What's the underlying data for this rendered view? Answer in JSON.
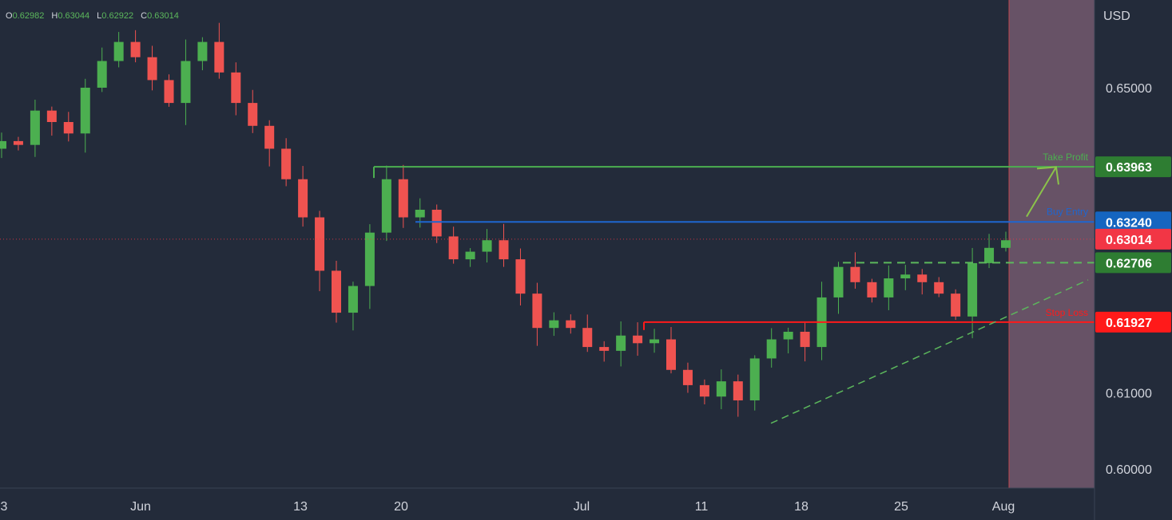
{
  "ohlc": {
    "o_label": "O",
    "o": "0.62982",
    "h_label": "H",
    "h": "0.63044",
    "l_label": "L",
    "l": "0.62922",
    "c_label": "C",
    "c": "0.63014"
  },
  "currency": "USD",
  "colors": {
    "background": "#232b3a",
    "up": "#26a69a",
    "up_candle": "#4caf50",
    "down": "#ef5350",
    "take_profit": "#4caf50",
    "buy_entry": "#1e66d0",
    "stop_loss": "#ff1a1a",
    "current": "#f23645",
    "shade": "#6b5468",
    "dashed": "#5cb85c"
  },
  "chart_data": {
    "type": "candlestick",
    "ylim": [
      0.5975,
      0.6615
    ],
    "y_ticks": [
      "0.65000",
      "0.61000",
      "0.60000"
    ],
    "x_ticks": [
      "3",
      "Jun",
      "13",
      "20",
      "Jul",
      "11",
      "18",
      "25",
      "Aug"
    ],
    "levels": [
      {
        "name": "Take Profit",
        "value": 0.63963,
        "label": "0.63963",
        "style": "solid"
      },
      {
        "name": "Buy Entry",
        "value": 0.6324,
        "label": "0.63240",
        "style": "solid"
      },
      {
        "name": "",
        "value": 0.63014,
        "label": "0.63014",
        "style": "dotted",
        "current": true
      },
      {
        "name": "",
        "value": 0.62706,
        "label": "0.62706",
        "style": "dashed"
      },
      {
        "name": "Stop Loss",
        "value": 0.61927,
        "label": "0.61927",
        "style": "solid"
      }
    ],
    "trendline": {
      "from": 0.606,
      "to": 0.6248
    },
    "anchors": [
      [
        "May 30",
        0.643
      ],
      [
        "May 31",
        0.6425
      ],
      [
        "Jun 1",
        0.647
      ],
      [
        "Jun 2",
        0.6455
      ],
      [
        "Jun 3",
        0.644
      ],
      [
        "Jun 6",
        0.65
      ],
      [
        "Jun 7",
        0.6535
      ],
      [
        "Jun 8",
        0.656
      ],
      [
        "Jun 9",
        0.654
      ],
      [
        "Jun 10",
        0.651
      ],
      [
        "Jun 13",
        0.648
      ],
      [
        "Jun 14",
        0.6535
      ],
      [
        "Jun 15",
        0.656
      ],
      [
        "Jun 16",
        0.652
      ],
      [
        "Jun 17",
        0.648
      ],
      [
        "Jun 20",
        0.645
      ],
      [
        "Jun 21",
        0.642
      ],
      [
        "Jun 22",
        0.638
      ],
      [
        "Jun 23",
        0.633
      ],
      [
        "Jun 24",
        0.626
      ],
      [
        "Jun 27",
        0.6205
      ],
      [
        "Jun 28",
        0.624
      ],
      [
        "Jun 29",
        0.631
      ],
      [
        "Jun 30",
        0.638
      ],
      [
        "Jul 1",
        0.633
      ],
      [
        "Jul 4",
        0.634
      ],
      [
        "Jul 5",
        0.6305
      ],
      [
        "Jul 6",
        0.6275
      ],
      [
        "Jul 7",
        0.6285
      ],
      [
        "Jul 8",
        0.63
      ],
      [
        "Jul 11",
        0.6275
      ],
      [
        "Jul 12",
        0.623
      ],
      [
        "Jul 13",
        0.6185
      ],
      [
        "Jul 14",
        0.6195
      ],
      [
        "Jul 15",
        0.6185
      ],
      [
        "Jul 18",
        0.616
      ],
      [
        "Jul 19",
        0.6155
      ],
      [
        "Jul 20",
        0.6175
      ],
      [
        "Jul 21",
        0.6165
      ],
      [
        "Jul 22",
        0.617
      ],
      [
        "Jul 25",
        0.613
      ],
      [
        "Jul 26",
        0.611
      ],
      [
        "Jul 27",
        0.6095
      ],
      [
        "Jul 28",
        0.6115
      ],
      [
        "Jul 29",
        0.609
      ],
      [
        "Aug 1",
        0.6145
      ],
      [
        "Aug 2",
        0.617
      ],
      [
        "Aug 3",
        0.618
      ],
      [
        "Aug 4",
        0.616
      ],
      [
        "Aug 5",
        0.6225
      ],
      [
        "Aug 8",
        0.6265
      ],
      [
        "Aug 9",
        0.6245
      ],
      [
        "Aug 10",
        0.6225
      ],
      [
        "Aug 11",
        0.625
      ],
      [
        "Aug 12",
        0.6255
      ],
      [
        "Aug 15",
        0.6245
      ],
      [
        "Aug 16",
        0.623
      ],
      [
        "Aug 17",
        0.62
      ],
      [
        "Aug 18",
        0.627
      ],
      [
        "Aug 19",
        0.629
      ],
      [
        "Aug 22",
        0.63
      ]
    ]
  }
}
